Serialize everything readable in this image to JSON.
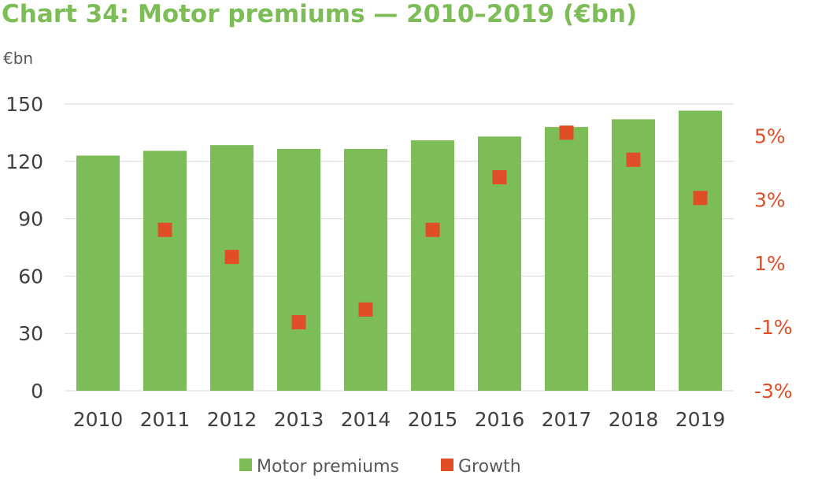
{
  "chart_data": {
    "type": "bar",
    "title": "Chart 34: Motor premiums — 2010–2019 (€bn)",
    "ylabel": "€bn",
    "categories": [
      "2010",
      "2011",
      "2012",
      "2013",
      "2014",
      "2015",
      "2016",
      "2017",
      "2018",
      "2019"
    ],
    "series": [
      {
        "name": "Motor premiums",
        "type": "bar",
        "axis": "left",
        "color": "#7dbd57",
        "values": [
          123,
          125.5,
          128.5,
          126.5,
          126.5,
          131,
          133,
          138,
          142,
          146.5
        ]
      },
      {
        "name": "Growth",
        "type": "scatter",
        "axis": "right",
        "color": "#e04e28",
        "values": [
          null,
          2.05,
          1.2,
          -0.85,
          -0.45,
          2.05,
          3.7,
          5.1,
          4.25,
          3.05
        ]
      }
    ],
    "ylim": [
      0,
      150
    ],
    "yticks": [
      0,
      30,
      60,
      90,
      120,
      150
    ],
    "y2lim": [
      -3,
      6
    ],
    "y2ticks": [
      -3,
      -1,
      1,
      3,
      5
    ],
    "y2ticklabels": [
      "-3%",
      "-1%",
      "1%",
      "3%",
      "5%"
    ],
    "grid": true,
    "legend": "bottom"
  }
}
